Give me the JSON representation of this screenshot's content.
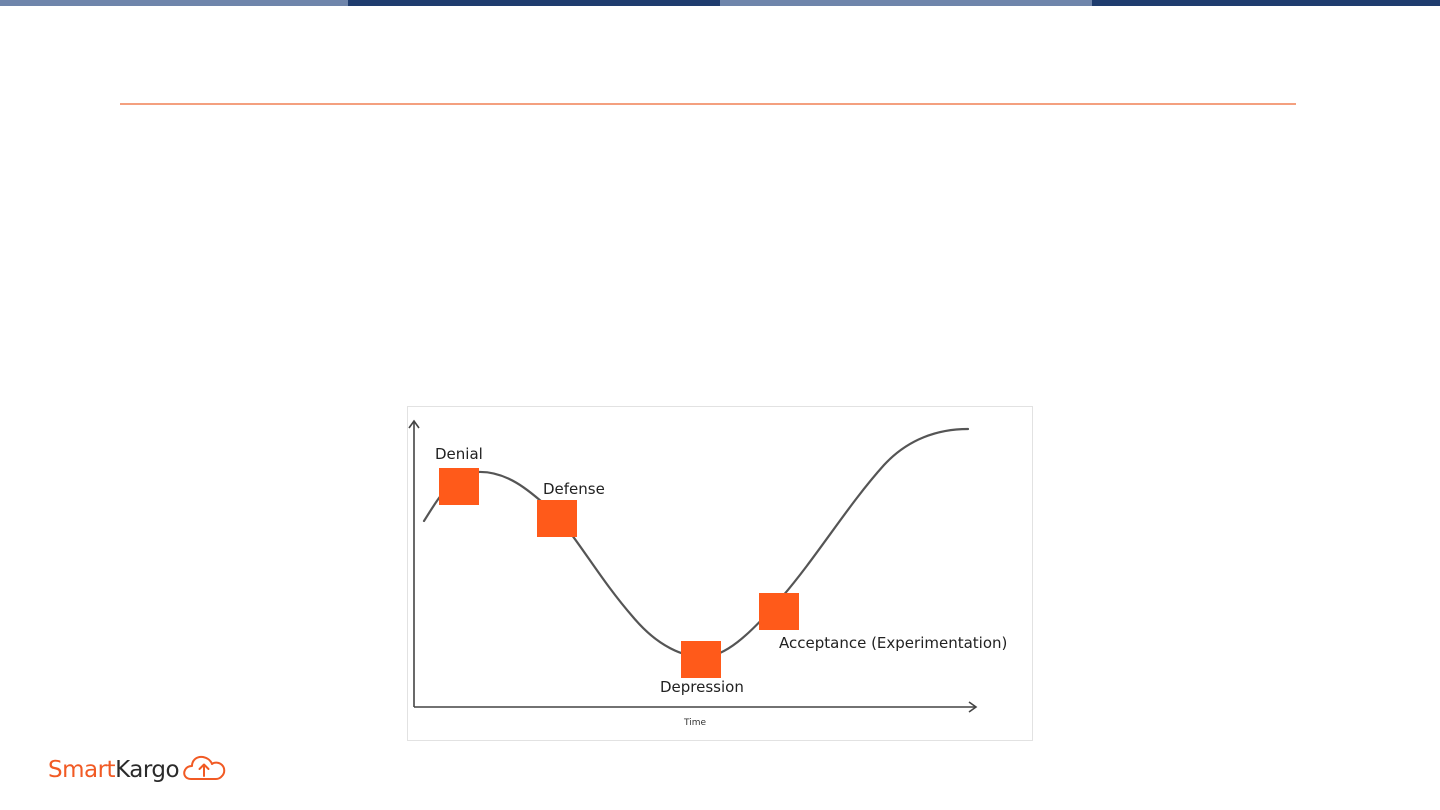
{
  "theme": {
    "bar_light": "#6f85ab",
    "bar_dark": "#1f3c6e",
    "rule_color": "#f4a07f",
    "marker_color": "#ff5a1a",
    "curve_color": "#555555",
    "axis_color": "#444444"
  },
  "diagram": {
    "stages": [
      {
        "label": "Denial"
      },
      {
        "label": "Defense"
      },
      {
        "label": "Depression"
      },
      {
        "label": "Acceptance (Experimentation)"
      }
    ],
    "x_axis_label": "Time"
  },
  "logo": {
    "part1": "Smart",
    "part2": "Kargo",
    "icon": "cloud-upload-icon"
  }
}
